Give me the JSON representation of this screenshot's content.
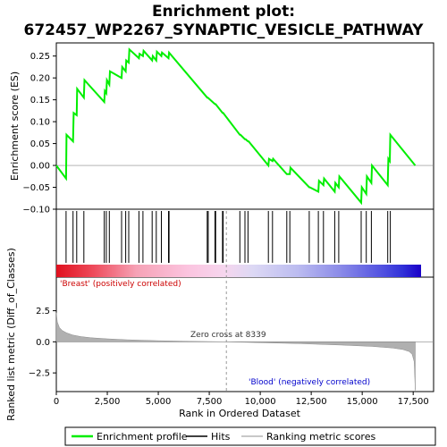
{
  "chart_data": {
    "type": "line",
    "title_line1": "Enrichment plot:",
    "title_line2": "672457_WP2267_SYNAPTIC_VESICLE_PATHWAY",
    "es_panel": {
      "ylabel": "Enrichment score (ES)",
      "ylim": [
        -0.1,
        0.28
      ],
      "yticks": [
        -0.1,
        -0.05,
        0.0,
        0.05,
        0.1,
        0.15,
        0.2,
        0.25
      ],
      "ytick_labels": [
        "−0.10",
        "−0.05",
        "0.00",
        "0.05",
        "0.10",
        "0.15",
        "0.20",
        "0.25"
      ],
      "series_name": "Enrichment profile",
      "x": [
        0,
        480,
        500,
        820,
        850,
        1000,
        1020,
        1350,
        1380,
        2350,
        2380,
        2450,
        2480,
        2600,
        2630,
        3200,
        3230,
        3400,
        3430,
        3550,
        3580,
        4050,
        4080,
        4250,
        4280,
        4700,
        4730,
        4900,
        4930,
        5150,
        5180,
        5500,
        5530,
        7400,
        7430,
        7780,
        7810,
        8150,
        8180,
        9000,
        9030,
        9250,
        9280,
        9400,
        9430,
        10400,
        10430,
        10600,
        10630,
        11300,
        11330,
        11450,
        11480,
        12400,
        12430,
        12850,
        12880,
        13100,
        13130,
        13650,
        13680,
        13850,
        13880,
        14950,
        14980,
        15200,
        15230,
        15450,
        15480,
        16250,
        16280,
        16350,
        16380,
        17600
      ],
      "y": [
        0.0,
        -0.03,
        0.07,
        0.055,
        0.12,
        0.115,
        0.175,
        0.155,
        0.195,
        0.145,
        0.17,
        0.165,
        0.195,
        0.185,
        0.215,
        0.2,
        0.225,
        0.215,
        0.24,
        0.235,
        0.265,
        0.245,
        0.255,
        0.25,
        0.262,
        0.24,
        0.25,
        0.24,
        0.26,
        0.25,
        0.258,
        0.245,
        0.258,
        0.155,
        0.155,
        0.14,
        0.14,
        0.12,
        0.12,
        0.07,
        0.07,
        0.06,
        0.06,
        0.055,
        0.055,
        0.0,
        0.015,
        0.01,
        0.015,
        -0.02,
        -0.02,
        -0.02,
        -0.005,
        -0.05,
        -0.05,
        -0.06,
        -0.035,
        -0.045,
        -0.03,
        -0.06,
        -0.04,
        -0.05,
        -0.025,
        -0.085,
        -0.05,
        -0.065,
        -0.025,
        -0.04,
        0.0,
        -0.045,
        0.015,
        0.01,
        0.07,
        0.0
      ]
    },
    "hits_panel": {
      "positions": [
        480,
        820,
        1000,
        1350,
        2350,
        2450,
        2600,
        3200,
        3400,
        3550,
        4050,
        4250,
        4700,
        4900,
        5150,
        5500,
        5530,
        7400,
        7450,
        7780,
        7810,
        8150,
        8180,
        9000,
        9250,
        9400,
        10400,
        10600,
        11300,
        11450,
        12400,
        12850,
        13100,
        13650,
        13850,
        14950,
        15200,
        15450,
        16250,
        16380
      ]
    },
    "metric_panel": {
      "ylabel": "Ranked list metric (Diff_of_Classes)",
      "xlabel": "Rank in Ordered Dataset",
      "ylim": [
        -4.0,
        5.2
      ],
      "yticks": [
        -2.5,
        0.0,
        2.5
      ],
      "ytick_labels": [
        "−2.5",
        "0.0",
        "2.5"
      ],
      "xlim": [
        0,
        18500
      ],
      "xticks": [
        0,
        2500,
        5000,
        7500,
        10000,
        12500,
        15000,
        17500
      ],
      "xtick_labels": [
        "0",
        "2,500",
        "5,000",
        "7,500",
        "10,000",
        "12,500",
        "15,000",
        "17,500"
      ],
      "n_ranks": 17600,
      "zero_cross": 8339,
      "zero_cross_label": "Zero cross at 8339",
      "positive_label": "'Breast' (positively correlated)",
      "negative_label": "'Blood' (negatively correlated)",
      "profile_ranks": [
        0,
        50,
        150,
        300,
        500,
        800,
        1200,
        1700,
        2500,
        3500,
        5000,
        6500,
        8339,
        10000,
        12000,
        14000,
        15500,
        16500,
        17000,
        17300,
        17450,
        17550,
        17600
      ],
      "profile_values": [
        2.35,
        1.6,
        1.15,
        0.9,
        0.72,
        0.55,
        0.42,
        0.33,
        0.24,
        0.16,
        0.09,
        0.04,
        0.0,
        -0.07,
        -0.15,
        -0.26,
        -0.37,
        -0.5,
        -0.62,
        -0.78,
        -1.0,
        -1.6,
        -3.9
      ]
    },
    "legend": {
      "entries": [
        "Enrichment profile",
        "Hits",
        "Ranking metric scores"
      ],
      "colors": [
        "#00ee00",
        "#000000",
        "#c8c8c8"
      ]
    },
    "colors": {
      "es_line": "#00ee00",
      "hit_line": "#000000",
      "metric_fill": "#b0b0b0",
      "zero_cross_line": "#999999",
      "positive_text": "#cc0000",
      "negative_text": "#0000cc"
    }
  }
}
